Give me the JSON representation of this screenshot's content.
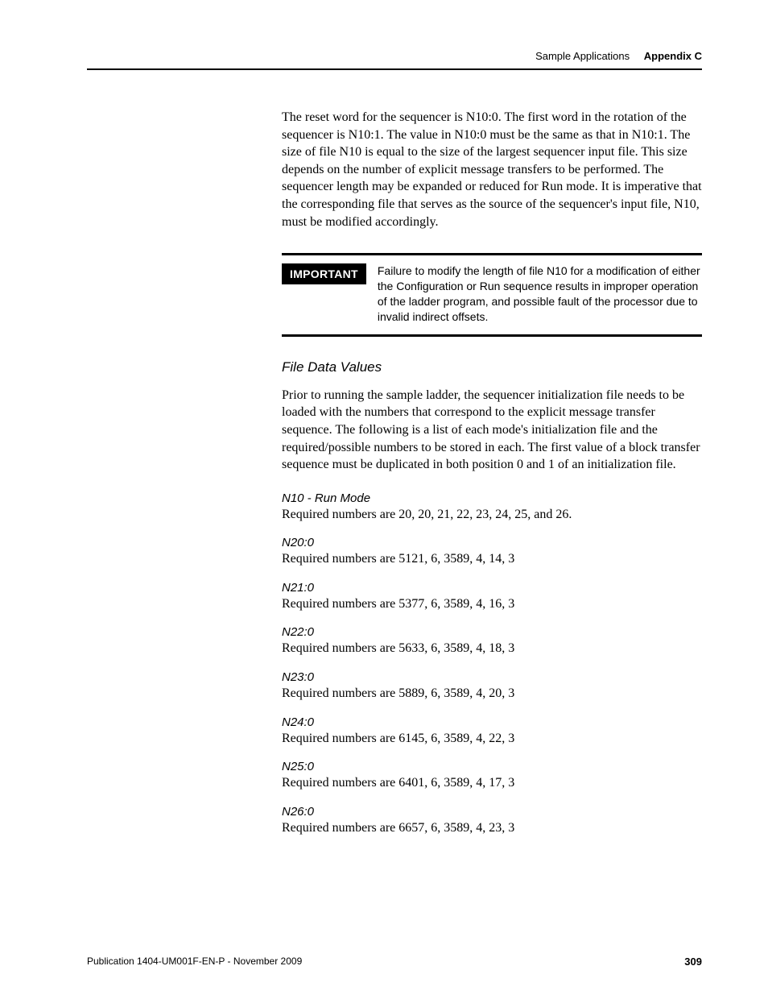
{
  "header": {
    "section": "Sample Applications",
    "appendix": "Appendix C"
  },
  "intro_para": "The reset word for the sequencer is N10:0. The first word in the rotation of the sequencer is N10:1. The value in N10:0 must be the same as that in N10:1. The size of file N10 is equal to the size of the largest sequencer input file. This size depends on the number of explicit message transfers to be performed. The sequencer length may be expanded or reduced for Run mode. It is imperative that the corresponding file that serves as the source of the sequencer's input file, N10, must be modified accordingly.",
  "callout": {
    "label": "IMPORTANT",
    "text": "Failure to modify the length of file N10 for a modification of either the Configuration or Run sequence results in improper operation of the ladder program, and possible fault of the processor due to invalid indirect offsets."
  },
  "file_data": {
    "heading": "File Data Values",
    "body": "Prior to running the sample ladder, the sequencer initialization file needs to be loaded with the numbers that correspond to the explicit message transfer sequence. The following is a list of each mode's initialization file and the required/possible numbers to be stored in each. The first value of a block transfer sequence must be duplicated in both position 0 and 1 of an initialization file."
  },
  "entries": [
    {
      "heading": "N10 - Run Mode",
      "body": "Required numbers are 20, 20, 21, 22, 23, 24, 25, and 26."
    },
    {
      "heading": "N20:0",
      "body": "Required numbers are 5121, 6, 3589, 4, 14, 3"
    },
    {
      "heading": "N21:0",
      "body": "Required numbers are 5377, 6, 3589, 4, 16, 3"
    },
    {
      "heading": "N22:0",
      "body": "Required numbers are 5633, 6, 3589, 4, 18, 3"
    },
    {
      "heading": "N23:0",
      "body": "Required numbers are 5889, 6, 3589, 4, 20, 3"
    },
    {
      "heading": "N24:0",
      "body": "Required numbers are 6145, 6, 3589, 4, 22, 3"
    },
    {
      "heading": "N25:0",
      "body": "Required numbers are 6401, 6, 3589, 4, 17, 3"
    },
    {
      "heading": "N26:0",
      "body": "Required numbers are 6657, 6, 3589, 4, 23, 3"
    }
  ],
  "footer": {
    "publication": "Publication 1404-UM001F-EN-P - November 2009",
    "page": "309"
  }
}
